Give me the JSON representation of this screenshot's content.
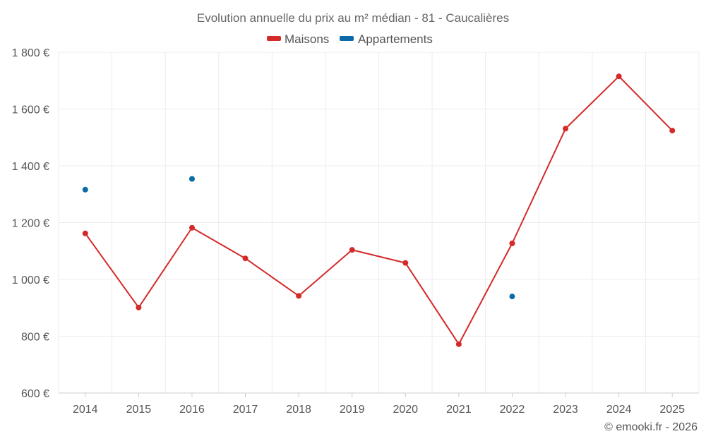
{
  "chart_data": {
    "type": "line",
    "title": "Evolution annuelle du prix au m² médian - 81 - Caucalières",
    "x": [
      "2014",
      "2015",
      "2016",
      "2017",
      "2018",
      "2019",
      "2020",
      "2021",
      "2022",
      "2023",
      "2024",
      "2025"
    ],
    "ylim": [
      600,
      1800
    ],
    "yticks": [
      600,
      800,
      1000,
      1200,
      1400,
      1600,
      1800
    ],
    "ytick_labels": [
      "600 €",
      "800 €",
      "1 000 €",
      "1 200 €",
      "1 400 €",
      "1 600 €",
      "1 800 €"
    ],
    "legend_position": "top-center",
    "grid": true,
    "series": [
      {
        "name": "Maisons",
        "color": "#d42a2a",
        "line": true,
        "values": [
          1162,
          901,
          1182,
          1074,
          942,
          1104,
          1058,
          772,
          1127,
          1531,
          1715,
          1524
        ]
      },
      {
        "name": "Appartements",
        "color": "#0b6ba8",
        "line": false,
        "values": [
          1316,
          null,
          1354,
          null,
          null,
          null,
          null,
          null,
          940,
          null,
          null,
          null
        ]
      }
    ]
  },
  "credit": "© emooki.fr - 2026"
}
